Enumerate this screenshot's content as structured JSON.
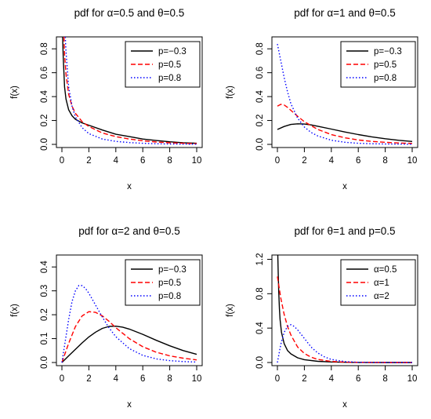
{
  "chart_data": [
    {
      "type": "line",
      "title": "pdf for α=0.5 and θ=0.5",
      "xlabel": "x",
      "ylabel": "f(x)",
      "xlim": [
        0,
        10
      ],
      "ylim": [
        0,
        0.9
      ],
      "xticks": [
        0,
        2,
        4,
        6,
        8,
        10
      ],
      "yticks": [
        0.0,
        0.2,
        0.4,
        0.6,
        0.8
      ],
      "ytick_labels": [
        "0.0",
        "0.2",
        "0.4",
        "0.6",
        "0.8"
      ],
      "legend_position": "top-right",
      "series": [
        {
          "name": "p=−0.3",
          "color": "#000000",
          "dash": "solid",
          "x": [
            0.05,
            0.1,
            0.2,
            0.3,
            0.5,
            0.75,
            1,
            1.5,
            2,
            3,
            4,
            5,
            6,
            7,
            8,
            9,
            10
          ],
          "y": [
            0.9,
            0.73,
            0.48,
            0.38,
            0.29,
            0.24,
            0.21,
            0.18,
            0.16,
            0.12,
            0.085,
            0.065,
            0.045,
            0.032,
            0.022,
            0.014,
            0.009
          ]
        },
        {
          "name": "p=0.5",
          "color": "#ff0000",
          "dash": "dashed",
          "x": [
            0.15,
            0.2,
            0.3,
            0.5,
            0.75,
            1,
            1.5,
            2,
            3,
            4,
            5,
            6,
            7,
            8,
            9,
            10
          ],
          "y": [
            0.9,
            0.75,
            0.59,
            0.42,
            0.32,
            0.26,
            0.19,
            0.15,
            0.095,
            0.065,
            0.045,
            0.03,
            0.02,
            0.013,
            0.009,
            0.006
          ]
        },
        {
          "name": "p=0.8",
          "color": "#0000ff",
          "dash": "dotted",
          "x": [
            0.25,
            0.3,
            0.5,
            0.75,
            1,
            1.5,
            2,
            3,
            4,
            5,
            6,
            7,
            8,
            9,
            10
          ],
          "y": [
            0.9,
            0.78,
            0.48,
            0.32,
            0.23,
            0.14,
            0.09,
            0.045,
            0.025,
            0.015,
            0.009,
            0.005,
            0.003,
            0.002,
            0.001
          ]
        }
      ]
    },
    {
      "type": "line",
      "title": "pdf for α=1 and θ=0.5",
      "xlabel": "x",
      "ylabel": "f(x)",
      "xlim": [
        0,
        10
      ],
      "ylim": [
        0,
        0.9
      ],
      "xticks": [
        0,
        2,
        4,
        6,
        8,
        10
      ],
      "yticks": [
        0.0,
        0.2,
        0.4,
        0.6,
        0.8
      ],
      "ytick_labels": [
        "0.0",
        "0.2",
        "0.4",
        "0.6",
        "0.8"
      ],
      "legend_position": "top-right",
      "series": [
        {
          "name": "p=−0.3",
          "color": "#000000",
          "dash": "solid",
          "x": [
            0,
            0.5,
            1,
            1.5,
            2,
            2.5,
            3,
            4,
            5,
            6,
            7,
            8,
            9,
            10
          ],
          "y": [
            0.125,
            0.15,
            0.167,
            0.172,
            0.17,
            0.163,
            0.152,
            0.128,
            0.104,
            0.082,
            0.063,
            0.047,
            0.034,
            0.024
          ]
        },
        {
          "name": "p=0.5",
          "color": "#ff0000",
          "dash": "dashed",
          "x": [
            0,
            0.25,
            0.5,
            0.75,
            1,
            1.5,
            2,
            3,
            4,
            5,
            6,
            7,
            8,
            9,
            10
          ],
          "y": [
            0.32,
            0.335,
            0.33,
            0.31,
            0.285,
            0.235,
            0.19,
            0.125,
            0.082,
            0.055,
            0.037,
            0.025,
            0.017,
            0.012,
            0.008
          ]
        },
        {
          "name": "p=0.8",
          "color": "#0000ff",
          "dash": "dotted",
          "x": [
            0,
            0.25,
            0.5,
            0.75,
            1,
            1.5,
            2,
            2.5,
            3,
            4,
            5,
            6,
            7,
            8,
            9,
            10
          ],
          "y": [
            0.84,
            0.7,
            0.56,
            0.44,
            0.34,
            0.22,
            0.145,
            0.1,
            0.07,
            0.035,
            0.018,
            0.009,
            0.005,
            0.003,
            0.002,
            0.001
          ]
        }
      ]
    },
    {
      "type": "line",
      "title": "pdf for α=2 and θ=0.5",
      "xlabel": "x",
      "ylabel": "f(x)",
      "xlim": [
        0,
        10
      ],
      "ylim": [
        0,
        0.45
      ],
      "xticks": [
        0,
        2,
        4,
        6,
        8,
        10
      ],
      "yticks": [
        0.0,
        0.1,
        0.2,
        0.3,
        0.4
      ],
      "ytick_labels": [
        "0.0",
        "0.1",
        "0.2",
        "0.3",
        "0.4"
      ],
      "legend_position": "top-right",
      "series": [
        {
          "name": "p=−0.3",
          "color": "#000000",
          "dash": "solid",
          "x": [
            0,
            0.5,
            1,
            1.5,
            2,
            2.5,
            3,
            3.5,
            4,
            4.5,
            5,
            6,
            7,
            8,
            9,
            10
          ],
          "y": [
            0,
            0.028,
            0.055,
            0.082,
            0.107,
            0.127,
            0.143,
            0.151,
            0.152,
            0.148,
            0.14,
            0.118,
            0.093,
            0.07,
            0.05,
            0.034
          ]
        },
        {
          "name": "p=0.5",
          "color": "#ff0000",
          "dash": "dashed",
          "x": [
            0,
            0.5,
            1,
            1.5,
            2,
            2.5,
            3,
            3.5,
            4,
            5,
            6,
            7,
            8,
            9,
            10
          ],
          "y": [
            0,
            0.08,
            0.15,
            0.195,
            0.213,
            0.21,
            0.195,
            0.172,
            0.146,
            0.1,
            0.066,
            0.043,
            0.028,
            0.018,
            0.011
          ]
        },
        {
          "name": "p=0.8",
          "color": "#0000ff",
          "dash": "dotted",
          "x": [
            0,
            0.25,
            0.5,
            0.75,
            1,
            1.25,
            1.5,
            1.75,
            2,
            2.5,
            3,
            3.5,
            4,
            5,
            6,
            7,
            8,
            9,
            10
          ],
          "y": [
            0,
            0.09,
            0.18,
            0.255,
            0.3,
            0.322,
            0.322,
            0.31,
            0.29,
            0.24,
            0.19,
            0.145,
            0.108,
            0.058,
            0.03,
            0.015,
            0.008,
            0.004,
            0.002
          ]
        }
      ]
    },
    {
      "type": "line",
      "title": "pdf for θ=1 and p=0.5",
      "xlabel": "x",
      "ylabel": "f(x)",
      "xlim": [
        0,
        10
      ],
      "ylim": [
        0,
        1.25
      ],
      "xticks": [
        0,
        2,
        4,
        6,
        8,
        10
      ],
      "yticks": [
        0.0,
        0.4,
        0.8,
        1.2
      ],
      "ytick_labels": [
        "0.0",
        "0.4",
        "0.8",
        "1.2"
      ],
      "legend_position": "top-right",
      "series": [
        {
          "name": "α=0.5",
          "color": "#000000",
          "dash": "solid",
          "x": [
            0.03,
            0.06,
            0.1,
            0.15,
            0.2,
            0.3,
            0.5,
            0.75,
            1,
            1.5,
            2,
            3,
            4,
            5,
            6,
            8,
            10
          ],
          "y": [
            1.25,
            1.05,
            0.82,
            0.62,
            0.5,
            0.35,
            0.22,
            0.14,
            0.1,
            0.055,
            0.033,
            0.014,
            0.006,
            0.003,
            0.001,
            0.0,
            0.0
          ]
        },
        {
          "name": "α=1",
          "color": "#ff0000",
          "dash": "dashed",
          "x": [
            0,
            0.25,
            0.5,
            0.75,
            1,
            1.5,
            2,
            2.5,
            3,
            4,
            5,
            6,
            8,
            10
          ],
          "y": [
            1.0,
            0.75,
            0.56,
            0.42,
            0.32,
            0.18,
            0.105,
            0.062,
            0.036,
            0.013,
            0.005,
            0.002,
            0.0,
            0.0
          ]
        },
        {
          "name": "α=2",
          "color": "#0000ff",
          "dash": "dotted",
          "x": [
            0,
            0.25,
            0.5,
            0.75,
            1,
            1.25,
            1.5,
            2,
            2.5,
            3,
            3.5,
            4,
            5,
            6,
            8,
            10
          ],
          "y": [
            0,
            0.21,
            0.35,
            0.42,
            0.44,
            0.42,
            0.38,
            0.28,
            0.18,
            0.11,
            0.065,
            0.036,
            0.011,
            0.003,
            0.0,
            0.0
          ]
        }
      ]
    }
  ]
}
